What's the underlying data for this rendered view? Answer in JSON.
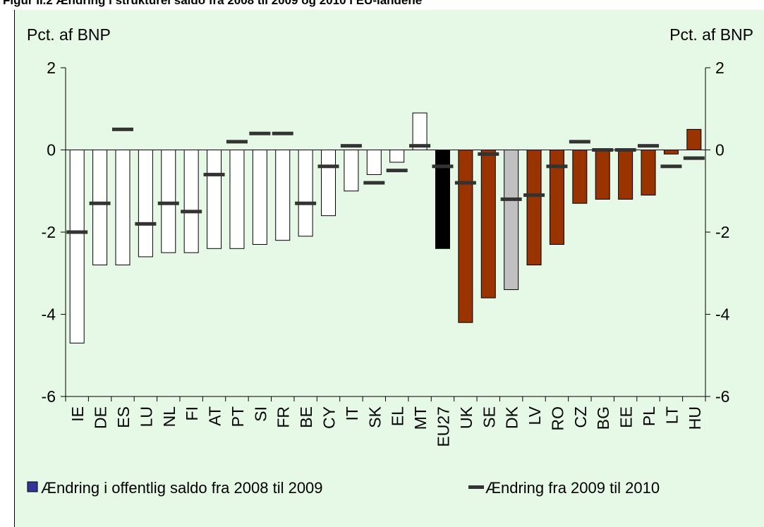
{
  "figure_header": "Figur II.2 Ændring i strukturel saldo fra 2008 til 2009 og 2010 i EU-landene",
  "chart_data": {
    "type": "bar",
    "ylabel_left": "Pct. af BNP",
    "ylabel_right": "Pct. af BNP",
    "ylim": [
      -6,
      2
    ],
    "yticks": [
      "2",
      "0",
      "-2",
      "-4",
      "-6"
    ],
    "categories": [
      "IE",
      "DE",
      "ES",
      "LU",
      "NL",
      "FI",
      "AT",
      "PT",
      "SI",
      "FR",
      "BE",
      "CY",
      "IT",
      "SK",
      "EL",
      "MT",
      "EU27",
      "UK",
      "SE",
      "DK",
      "LV",
      "RO",
      "CZ",
      "BG",
      "EE",
      "PL",
      "LT",
      "HU"
    ],
    "series": [
      {
        "name": "Ændring i offentlig saldo fra 2008 til 2009",
        "values": [
          -4.7,
          -2.8,
          -2.8,
          -2.6,
          -2.5,
          -2.5,
          -2.4,
          -2.4,
          -2.3,
          -2.2,
          -2.1,
          -1.6,
          -1.0,
          -0.6,
          -0.3,
          0.9,
          -2.4,
          -4.2,
          -3.6,
          -3.4,
          -2.8,
          -2.3,
          -1.3,
          -1.2,
          -1.2,
          -1.1,
          -0.1,
          0.5
        ]
      },
      {
        "name": "Ændring fra 2009 til 2010",
        "values": [
          -2.0,
          -1.3,
          0.5,
          -1.8,
          -1.3,
          -1.5,
          -0.6,
          0.2,
          0.4,
          0.4,
          -1.3,
          -0.4,
          0.1,
          -0.8,
          -0.5,
          0.1,
          -0.4,
          -0.8,
          -0.1,
          -1.2,
          -1.1,
          -0.4,
          0.2,
          0.0,
          0.0,
          0.1,
          -0.4,
          -0.2
        ]
      }
    ],
    "colors": {
      "default_bar": "#ffffff",
      "eu27_bar": "#000000",
      "dk_bar": "#c0c0c0",
      "new_member_bar": "#993300",
      "marker": "#333333",
      "legend_box": "#333399",
      "panel_bg": "#e6f8e6"
    },
    "legend_position": "bottom",
    "grid": false
  }
}
